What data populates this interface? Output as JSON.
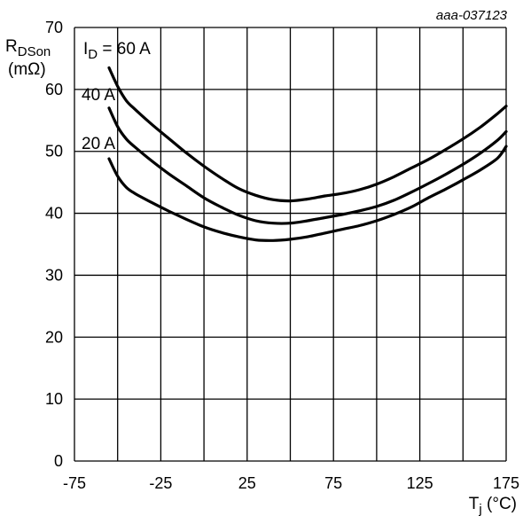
{
  "chart_data": {
    "type": "line",
    "figure_code": "aaa-037123",
    "ylabel": {
      "main": "R",
      "sub": "DSon",
      "unit": "(mΩ)"
    },
    "xlabel": {
      "main": "T",
      "sub": "j",
      "unit": " (°C)"
    },
    "xlim": [
      -75,
      175
    ],
    "ylim": [
      0,
      70
    ],
    "x_ticks": [
      -75,
      -50,
      -25,
      0,
      25,
      50,
      75,
      100,
      125,
      150,
      175
    ],
    "x_tick_labels": [
      "-75",
      "-25",
      "25",
      "75",
      "125",
      "175"
    ],
    "x_tick_label_values": [
      -75,
      -25,
      25,
      75,
      125,
      175
    ],
    "y_ticks": [
      0,
      10,
      20,
      30,
      40,
      50,
      60,
      70
    ],
    "y_tick_labels": [
      "0",
      "10",
      "20",
      "30",
      "40",
      "50",
      "60",
      "70"
    ],
    "grid": true,
    "series": [
      {
        "name": "I<sub>D</sub> = 60 A",
        "label_main": "I",
        "label_sub": "D",
        "label_rest": " = 60 A",
        "x": [
          -55,
          -50,
          -45,
          -40,
          -30,
          -20,
          -10,
          0,
          10,
          20,
          30,
          40,
          50,
          60,
          70,
          80,
          90,
          100,
          110,
          120,
          130,
          140,
          150,
          160,
          170,
          175
        ],
        "y": [
          63.5,
          60.5,
          58.2,
          56.8,
          54.3,
          52.0,
          49.7,
          47.6,
          45.7,
          44.0,
          42.9,
          42.2,
          42.0,
          42.3,
          42.8,
          43.2,
          43.8,
          44.7,
          45.9,
          47.3,
          48.7,
          50.3,
          52.0,
          53.9,
          56.1,
          57.3
        ]
      },
      {
        "name": "40 A",
        "label_main": "40 A",
        "x": [
          -55,
          -50,
          -45,
          -40,
          -30,
          -20,
          -10,
          0,
          10,
          20,
          30,
          40,
          50,
          60,
          70,
          80,
          90,
          100,
          110,
          120,
          130,
          140,
          150,
          160,
          170,
          175
        ],
        "y": [
          57.0,
          54.0,
          52.0,
          50.7,
          48.4,
          46.3,
          44.4,
          42.5,
          41.0,
          39.7,
          38.8,
          38.4,
          38.4,
          38.8,
          39.3,
          39.8,
          40.4,
          41.1,
          42.1,
          43.4,
          44.8,
          46.3,
          47.9,
          49.7,
          51.8,
          53.2
        ]
      },
      {
        "name": "20 A",
        "label_main": "20 A",
        "x": [
          -55,
          -50,
          -45,
          -40,
          -30,
          -20,
          -10,
          0,
          10,
          20,
          30,
          40,
          50,
          60,
          70,
          80,
          90,
          100,
          110,
          120,
          130,
          140,
          150,
          160,
          170,
          175
        ],
        "y": [
          48.8,
          46.0,
          44.2,
          43.2,
          41.7,
          40.3,
          39.0,
          37.8,
          36.9,
          36.2,
          35.7,
          35.6,
          35.8,
          36.2,
          36.8,
          37.4,
          38.0,
          38.8,
          39.8,
          41.0,
          42.5,
          43.9,
          45.4,
          47.0,
          48.9,
          50.8
        ]
      }
    ]
  }
}
